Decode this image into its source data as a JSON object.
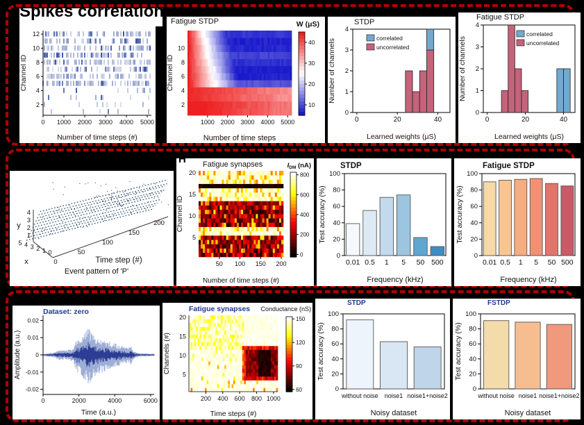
{
  "figure": {
    "title": "Spikes correlation",
    "panel_letter_h": "H",
    "background": "#000000",
    "frame_border_color": "#b00000",
    "accent_navy": "#1e3a8f"
  },
  "chart_data": [
    {
      "id": "spike-raster",
      "type": "scatter",
      "subtype": "raster",
      "title": "",
      "xlabel": "Number of time steps (#)",
      "ylabel": "Channel ID",
      "xticks": [
        0,
        1000,
        2000,
        3000,
        4000,
        5000
      ],
      "yticks": [
        2,
        4,
        6,
        8,
        10,
        12
      ],
      "xlim": [
        0,
        5200
      ],
      "channels": 12,
      "dense_channels": "5-12",
      "sparse_channels": "1-4",
      "dense_density": 0.5,
      "sparse_density": 0.09,
      "color": "#3b54a5"
    },
    {
      "id": "fatigue-stdp-weight-map",
      "type": "heatmap",
      "subtype": "red-blue",
      "title": "Fatigue STDP",
      "colorbar_label": "W (μS)",
      "colorbar_ticks": [
        40,
        30,
        20,
        10
      ],
      "xlabel": "Number of time steps",
      "ylabel": "Channel ID",
      "xticks": [
        1000,
        2000,
        3000,
        4000,
        5000
      ],
      "yticks": [
        2,
        4,
        6,
        8,
        10
      ],
      "rows": 12,
      "cols": 52,
      "wlim": [
        5,
        45
      ],
      "pattern": "channels 5-12 start red (~40 uS) then depress to deep blue (~10 uS) after ~1500 steps; channels 1-4 stay red-pink",
      "color_high": "#ee2020",
      "color_low": "#1a1acc"
    },
    {
      "id": "stdp-weight-histogram",
      "type": "histogram",
      "title": "STDP",
      "xlabel": "Learned weights (μS)",
      "ylabel": "Number of channels",
      "xticks": [
        0,
        20,
        40
      ],
      "yticks": [
        0,
        1,
        2,
        3,
        4
      ],
      "xlim": [
        -2,
        46
      ],
      "ylim": [
        0,
        4
      ],
      "legend": [
        {
          "label": "correlated",
          "color": "#74a9cf"
        },
        {
          "label": "uncorrelated",
          "color": "#c4637a"
        }
      ],
      "legend_pos": "upper-left",
      "bars": [
        {
          "x0": 24,
          "x1": 27.5,
          "uncorrelated": 2,
          "correlated": 0
        },
        {
          "x0": 27.5,
          "x1": 31,
          "uncorrelated": 1,
          "correlated": 0
        },
        {
          "x0": 31,
          "x1": 34.5,
          "uncorrelated": 2,
          "correlated": 0
        },
        {
          "x0": 34.5,
          "x1": 38,
          "uncorrelated": 3,
          "correlated": 1
        }
      ]
    },
    {
      "id": "fatigue-stdp-weight-histogram",
      "type": "histogram",
      "title": "Fatigue STDP",
      "xlabel": "Learned weights (μS)",
      "ylabel": "Number of channels",
      "xticks": [
        0,
        20,
        40
      ],
      "yticks": [
        0,
        1,
        2,
        3,
        4
      ],
      "xlim": [
        -2,
        46
      ],
      "ylim": [
        0,
        4
      ],
      "legend": [
        {
          "label": "correlated",
          "color": "#74a9cf"
        },
        {
          "label": "uncorrelated",
          "color": "#c4637a"
        }
      ],
      "legend_pos": "upper-right",
      "bars": [
        {
          "x0": 7.5,
          "x1": 11,
          "uncorrelated": 1,
          "correlated": 0
        },
        {
          "x0": 11,
          "x1": 14.5,
          "uncorrelated": 4,
          "correlated": 0
        },
        {
          "x0": 14.5,
          "x1": 18,
          "uncorrelated": 2,
          "correlated": 0
        },
        {
          "x0": 18,
          "x1": 21.5,
          "uncorrelated": 1,
          "correlated": 0
        },
        {
          "x0": 36.5,
          "x1": 40,
          "uncorrelated": 0,
          "correlated": 2
        },
        {
          "x0": 40,
          "x1": 43.5,
          "uncorrelated": 0,
          "correlated": 2
        }
      ]
    },
    {
      "id": "event-pattern-3d",
      "type": "scatter",
      "subtype": "3d",
      "title": "",
      "caption": "Event pattern of 'P'",
      "time_label": "Time step (#)",
      "time_ticks": [
        0,
        50,
        100,
        150,
        200
      ],
      "y_label": "y",
      "y_ticks": [
        4,
        3,
        2,
        1
      ],
      "x_label": "x",
      "x_ticks": [
        5,
        4,
        3,
        2,
        1,
        0
      ],
      "lines": 10,
      "color": "#2e4d6b"
    },
    {
      "id": "fatigue-synapses-current-map",
      "type": "heatmap",
      "subtype": "hot",
      "title": "Fatigue synapses",
      "colorbar_label": {
        "symbol": "I",
        "sub": "DM",
        "unit": " (nA)"
      },
      "colorbar_ticks": [
        800,
        600,
        400,
        200,
        0
      ],
      "xlabel": "Number of time steps (#)",
      "ylabel": "Channel ID",
      "xticks": [
        50,
        100,
        150,
        200
      ],
      "yticks": [
        5,
        10,
        15,
        20
      ],
      "rows": 20,
      "cols": 40,
      "dark_channels": [
        1,
        2,
        3,
        4,
        5,
        8,
        9,
        10,
        11,
        12,
        13
      ],
      "black_channels": [
        17
      ],
      "pattern": "dark mosaic rows carry high currents; channel 17 nearly saturated black; remaining channels pale with orange speckles"
    },
    {
      "id": "stdp-frequency-accuracy",
      "type": "bar",
      "title": "STDP",
      "categories": [
        "0.01",
        "0.5",
        "1",
        "5",
        "50",
        "500"
      ],
      "values": [
        39,
        55,
        71,
        74,
        22,
        11
      ],
      "colors": [
        "#f5f9fd",
        "#ddeaf5",
        "#c3daed",
        "#9cc6e0",
        "#5fa6d1",
        "#3d8dc4"
      ],
      "xlabel": "Frequency (kHz)",
      "ylabel": "Test accuracy (%)",
      "yticks": [
        0,
        20,
        40,
        60,
        80,
        100
      ],
      "ylim": [
        0,
        100
      ]
    },
    {
      "id": "fatigue-stdp-frequency-accuracy",
      "type": "bar",
      "title": "Fatigue STDP",
      "categories": [
        "0.01",
        "0.5",
        "1",
        "5",
        "50",
        "500"
      ],
      "values": [
        90,
        92,
        93,
        94,
        88,
        85
      ],
      "colors": [
        "#f6d9a6",
        "#f8c591",
        "#f6ad80",
        "#f19174",
        "#e0756a",
        "#c95a68"
      ],
      "xlabel": "Frequency (kHz)",
      "ylabel": "Test accuracy (%)",
      "yticks": [
        0,
        20,
        40,
        60,
        80,
        100
      ],
      "ylim": [
        0,
        100
      ]
    },
    {
      "id": "dataset-zero-waveform",
      "type": "line",
      "subtype": "waveform",
      "title": "Dataset: zero",
      "title_color": "#1e3a8f",
      "xlabel": "Time (a.u.)",
      "ylabel": "Amplitude (a.u.)",
      "xticks": [
        0,
        2000,
        4000,
        6000
      ],
      "yticks": [
        0.02,
        0.01,
        0,
        -0.01,
        -0.02
      ],
      "xlim": [
        0,
        6200
      ],
      "ylim": [
        -0.023,
        0.023
      ],
      "color": "#27378f",
      "envelope_color": "#93a5d2",
      "envelope": [
        [
          0,
          0.0006
        ],
        [
          600,
          0.0015
        ],
        [
          900,
          0.003
        ],
        [
          1300,
          0.0025
        ],
        [
          1700,
          0.004
        ],
        [
          1850,
          0.009
        ],
        [
          2100,
          0.011
        ],
        [
          2400,
          0.014
        ],
        [
          2550,
          0.017
        ],
        [
          2700,
          0.013
        ],
        [
          3000,
          0.011
        ],
        [
          3400,
          0.009
        ],
        [
          3800,
          0.0075
        ],
        [
          4200,
          0.006
        ],
        [
          4600,
          0.0045
        ],
        [
          4900,
          0.005
        ],
        [
          5100,
          0.002
        ],
        [
          5400,
          0.001
        ],
        [
          6000,
          0.0008
        ]
      ]
    },
    {
      "id": "fatigue-synapses-conductance-map",
      "type": "heatmap",
      "subtype": "hot-sparse",
      "title": "Fatigue synapses",
      "title_color": "#1e3a8f",
      "colorbar_label": "Conductance (nS)",
      "colorbar_ticks": [
        150,
        120,
        90,
        60
      ],
      "xlabel": "Time steps (#)",
      "ylabel": "Channels (#)",
      "xticks": [
        200,
        400,
        600,
        800,
        1000
      ],
      "yticks": [
        5,
        10,
        15,
        20
      ],
      "rows": 20,
      "cols": 50,
      "pattern": "pale-yellow speckle over channels 12-20 before ~600 steps; dark low-conductance block over channels 4-12 from ~620-1000 with near-black band ~800-930"
    },
    {
      "id": "stdp-noise-accuracy",
      "type": "bar",
      "title": "STDP",
      "title_color": "#1e3a8f",
      "categories": [
        "without noise",
        "noise1",
        "noise1+noise2"
      ],
      "values": [
        92,
        63,
        56
      ],
      "colors": [
        "#eef4fb",
        "#d9e6f3",
        "#bed5ea"
      ],
      "xlabel": "Noisy dataset",
      "ylabel": "Test accuracy (%)",
      "yticks": [
        0,
        20,
        40,
        60,
        80,
        100
      ],
      "ylim": [
        0,
        100
      ]
    },
    {
      "id": "fstdp-noise-accuracy",
      "type": "bar",
      "title": "FSTDP",
      "title_color": "#1e3a8f",
      "categories": [
        "without noise",
        "noise1",
        "noise1+noise2"
      ],
      "values": [
        91,
        89,
        86
      ],
      "colors": [
        "#f3dbaa",
        "#f6bd90",
        "#f0997c"
      ],
      "xlabel": "Noisy dataset",
      "ylabel": "Test accuracy (%)",
      "yticks": [
        0,
        20,
        40,
        60,
        80,
        100
      ],
      "ylim": [
        0,
        100
      ]
    }
  ]
}
